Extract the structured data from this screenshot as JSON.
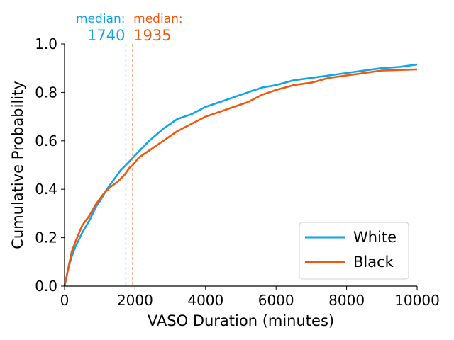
{
  "chart_data": {
    "type": "line",
    "title": "",
    "xlabel": "VASO Duration (minutes)",
    "ylabel": "Cumulative Probability",
    "xlim": [
      0,
      10000
    ],
    "ylim": [
      0,
      1.0
    ],
    "grid": false,
    "legend_position": "bottom-right",
    "x_ticks": [
      0,
      2000,
      4000,
      6000,
      8000,
      10000
    ],
    "x_tick_labels": [
      "0",
      "2000",
      "4000",
      "6000",
      "8000",
      "10000"
    ],
    "y_ticks": [
      0,
      0.2,
      0.4,
      0.6,
      0.8,
      1.0
    ],
    "y_tick_labels": [
      "0.0",
      "0.2",
      "0.4",
      "0.6",
      "0.8",
      "1.0"
    ],
    "series": [
      {
        "name": "White",
        "color": "#0ea5e9",
        "x": [
          0,
          100,
          200,
          300,
          500,
          700,
          900,
          1000,
          1200,
          1400,
          1600,
          1740,
          2000,
          2400,
          2800,
          3200,
          3600,
          4000,
          4400,
          4800,
          5200,
          5600,
          6000,
          6500,
          7000,
          7500,
          8000,
          8500,
          9000,
          9500,
          10000
        ],
        "y": [
          0.0,
          0.07,
          0.12,
          0.16,
          0.22,
          0.27,
          0.33,
          0.35,
          0.4,
          0.44,
          0.48,
          0.5,
          0.54,
          0.6,
          0.65,
          0.69,
          0.71,
          0.74,
          0.76,
          0.78,
          0.8,
          0.82,
          0.83,
          0.85,
          0.86,
          0.87,
          0.88,
          0.89,
          0.9,
          0.905,
          0.915
        ]
      },
      {
        "name": "Black",
        "color": "#f4560b",
        "x": [
          0,
          100,
          200,
          300,
          500,
          700,
          900,
          1100,
          1300,
          1500,
          1700,
          1850,
          1935,
          2100,
          2400,
          2800,
          3200,
          3600,
          4000,
          4400,
          4800,
          5200,
          5600,
          6000,
          6500,
          7000,
          7500,
          8000,
          8500,
          9000,
          10000
        ],
        "y": [
          0.0,
          0.07,
          0.14,
          0.18,
          0.25,
          0.29,
          0.34,
          0.38,
          0.41,
          0.43,
          0.46,
          0.49,
          0.5,
          0.53,
          0.56,
          0.6,
          0.64,
          0.67,
          0.7,
          0.72,
          0.74,
          0.76,
          0.79,
          0.81,
          0.83,
          0.84,
          0.86,
          0.87,
          0.88,
          0.89,
          0.895
        ]
      }
    ],
    "medians": [
      {
        "series": "White",
        "label": "median:",
        "value": 1740,
        "value_text": "1740",
        "color": "#0ea5e9"
      },
      {
        "series": "Black",
        "label": "median:",
        "value": 1935,
        "value_text": "1935",
        "color": "#f4560b"
      }
    ]
  }
}
